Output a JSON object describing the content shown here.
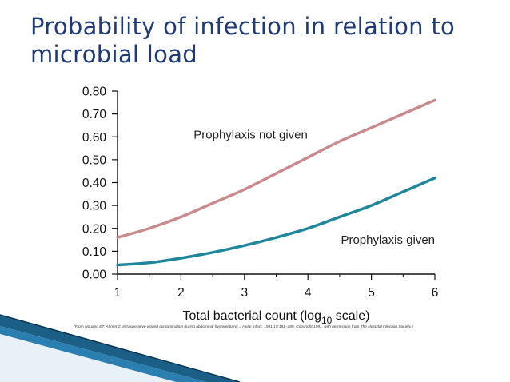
{
  "slide": {
    "title": "Probability of infection in relation to microbial load",
    "caption": "(From Houang ET, Ahmet Z. Intraoperative wound contamination during abdominal hysterectomy. J Hosp Infect. 1991;19:181–189. Copyright 1991, with permission from The Hospital Infection Society.)"
  },
  "decoration": {
    "stripe_colors": [
      "#1c5f86",
      "#2b7fb0",
      "#0d3550"
    ]
  },
  "chart_data": {
    "type": "line",
    "title": "",
    "xlabel": {
      "prefix": "Total bacterial count (log",
      "subscript": "10",
      "suffix": " scale)"
    },
    "ylabel": "",
    "xlim": [
      1,
      6
    ],
    "ylim": [
      0,
      0.8
    ],
    "xticks": [
      1,
      2,
      3,
      4,
      5,
      6
    ],
    "yticks": [
      "0.00",
      "0.10",
      "0.20",
      "0.30",
      "0.40",
      "0.50",
      "0.60",
      "0.70",
      "0.80"
    ],
    "grid": false,
    "series": [
      {
        "name": "Prophylaxis not given",
        "color": "#c88a8c",
        "x": [
          1,
          1.5,
          2,
          2.5,
          3,
          3.5,
          4,
          4.5,
          5,
          5.5,
          6
        ],
        "y": [
          0.16,
          0.2,
          0.25,
          0.31,
          0.37,
          0.44,
          0.51,
          0.58,
          0.64,
          0.7,
          0.76
        ]
      },
      {
        "name": "Prophylaxis given",
        "color": "#1f869c",
        "x": [
          1,
          1.5,
          2,
          2.5,
          3,
          3.5,
          4,
          4.5,
          5,
          5.5,
          6
        ],
        "y": [
          0.04,
          0.05,
          0.07,
          0.095,
          0.125,
          0.16,
          0.2,
          0.25,
          0.3,
          0.36,
          0.42
        ]
      }
    ]
  }
}
